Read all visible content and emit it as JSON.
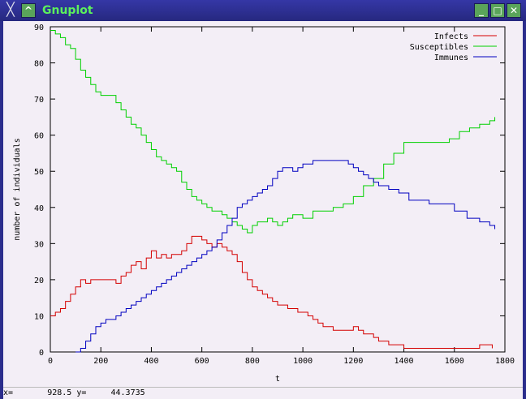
{
  "window": {
    "title": "Gnuplot",
    "menu_icon": "x-menu-icon",
    "shade_icon": "chevron-up-icon",
    "minimize_icon": "minimize-icon",
    "maximize_icon": "maximize-icon",
    "close_icon": "close-icon"
  },
  "status": {
    "x_label": "x=",
    "x_value": "928.5",
    "y_label": "y=",
    "y_value": "44.3735"
  },
  "chart_data": {
    "type": "line",
    "title": "",
    "xlabel": "t",
    "ylabel": "number of individuals",
    "xlim": [
      0,
      1800
    ],
    "ylim": [
      0,
      90
    ],
    "xticks": [
      0,
      200,
      400,
      600,
      800,
      1000,
      1200,
      1400,
      1600,
      1800
    ],
    "yticks": [
      0,
      10,
      20,
      30,
      40,
      50,
      60,
      70,
      80,
      90
    ],
    "grid": false,
    "legend": "top-right",
    "series": [
      {
        "name": "Infects",
        "color": "#d40000",
        "x": [
          0,
          20,
          40,
          60,
          80,
          100,
          120,
          140,
          160,
          180,
          200,
          220,
          240,
          260,
          280,
          300,
          320,
          340,
          360,
          380,
          400,
          420,
          440,
          460,
          480,
          500,
          520,
          540,
          560,
          580,
          600,
          620,
          640,
          660,
          680,
          700,
          720,
          740,
          760,
          780,
          800,
          820,
          840,
          860,
          880,
          900,
          920,
          940,
          960,
          980,
          1000,
          1020,
          1040,
          1060,
          1080,
          1100,
          1120,
          1140,
          1160,
          1180,
          1200,
          1220,
          1240,
          1260,
          1280,
          1300,
          1340,
          1400,
          1500,
          1600,
          1650,
          1700,
          1750
        ],
        "y": [
          10,
          11,
          12,
          14,
          16,
          18,
          20,
          19,
          20,
          20,
          20,
          20,
          20,
          19,
          21,
          22,
          24,
          25,
          23,
          26,
          28,
          26,
          27,
          26,
          27,
          27,
          28,
          30,
          32,
          32,
          31,
          30,
          29,
          30,
          29,
          28,
          27,
          25,
          22,
          20,
          18,
          17,
          16,
          15,
          14,
          13,
          13,
          12,
          12,
          11,
          11,
          10,
          9,
          8,
          7,
          7,
          6,
          6,
          6,
          6,
          7,
          6,
          5,
          5,
          4,
          3,
          2,
          1,
          1,
          1,
          1,
          2,
          1
        ]
      },
      {
        "name": "Susceptibles",
        "color": "#00d000",
        "x": [
          0,
          20,
          40,
          60,
          80,
          100,
          120,
          140,
          160,
          180,
          200,
          220,
          240,
          260,
          280,
          300,
          320,
          340,
          360,
          380,
          400,
          420,
          440,
          460,
          480,
          500,
          520,
          540,
          560,
          580,
          600,
          620,
          640,
          660,
          680,
          700,
          720,
          740,
          760,
          780,
          800,
          820,
          840,
          860,
          880,
          900,
          920,
          940,
          960,
          980,
          1000,
          1040,
          1080,
          1120,
          1160,
          1200,
          1240,
          1280,
          1320,
          1360,
          1400,
          1460,
          1520,
          1580,
          1620,
          1660,
          1700,
          1740,
          1760
        ],
        "y": [
          89,
          88,
          87,
          85,
          84,
          81,
          78,
          76,
          74,
          72,
          71,
          71,
          71,
          69,
          67,
          65,
          63,
          62,
          60,
          58,
          56,
          54,
          53,
          52,
          51,
          50,
          47,
          45,
          43,
          42,
          41,
          40,
          39,
          39,
          38,
          37,
          36,
          35,
          34,
          33,
          35,
          36,
          36,
          37,
          36,
          35,
          36,
          37,
          38,
          38,
          37,
          39,
          39,
          40,
          41,
          43,
          46,
          48,
          52,
          55,
          58,
          58,
          58,
          59,
          61,
          62,
          63,
          64,
          65
        ]
      },
      {
        "name": "Immunes",
        "color": "#0000c0",
        "x": [
          100,
          120,
          140,
          160,
          180,
          200,
          220,
          240,
          260,
          280,
          300,
          320,
          340,
          360,
          380,
          400,
          420,
          440,
          460,
          480,
          500,
          520,
          540,
          560,
          580,
          600,
          620,
          640,
          660,
          680,
          700,
          720,
          740,
          760,
          780,
          800,
          820,
          840,
          860,
          880,
          900,
          920,
          940,
          960,
          980,
          1000,
          1020,
          1040,
          1060,
          1080,
          1100,
          1120,
          1140,
          1160,
          1180,
          1200,
          1220,
          1240,
          1260,
          1280,
          1300,
          1340,
          1380,
          1420,
          1500,
          1560,
          1600,
          1650,
          1700,
          1740,
          1760
        ],
        "y": [
          0,
          1,
          3,
          5,
          7,
          8,
          9,
          9,
          10,
          11,
          12,
          13,
          14,
          15,
          16,
          17,
          18,
          19,
          20,
          21,
          22,
          23,
          24,
          25,
          26,
          27,
          28,
          29,
          31,
          33,
          35,
          37,
          40,
          41,
          42,
          43,
          44,
          45,
          46,
          48,
          50,
          51,
          51,
          50,
          51,
          52,
          52,
          53,
          53,
          53,
          53,
          53,
          53,
          53,
          52,
          51,
          50,
          49,
          48,
          47,
          46,
          45,
          44,
          42,
          41,
          41,
          39,
          37,
          36,
          35,
          34
        ]
      }
    ]
  }
}
